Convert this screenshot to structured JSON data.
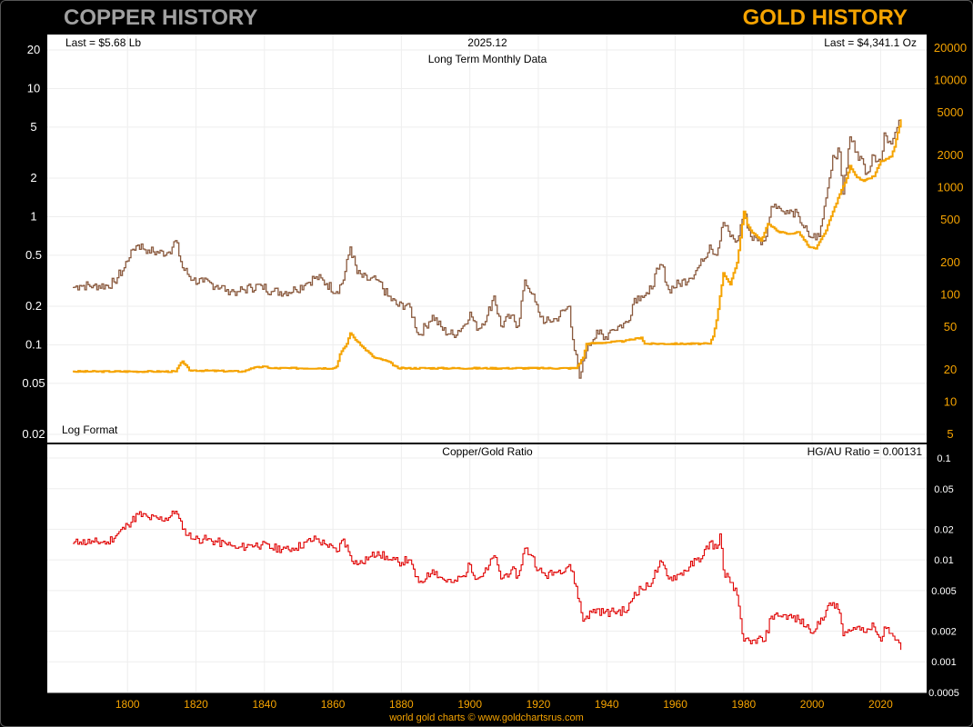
{
  "header": {
    "left_title": "COPPER HISTORY",
    "right_title": "GOLD HISTORY",
    "footer": "world gold charts © www.goldchartsrus.com"
  },
  "colors": {
    "copper": "#8a5a3e",
    "gold": "#f5a300",
    "ratio": "#e00000",
    "left_axis_text": "#ffffff",
    "right_axis_text": "#f5a300",
    "grid": "#eeeeee"
  },
  "chart_data": [
    {
      "type": "line",
      "title": "Long Term Monthly Data",
      "date_label": "2025.12",
      "last_left": "Last = $5.68 Lb",
      "last_right": "Last = $4,341.1 Oz",
      "scale_note": "Log Format",
      "x_range": [
        1784,
        2026
      ],
      "x_ticks": [
        "1800",
        "1820",
        "1840",
        "1860",
        "1880",
        "1900",
        "1920",
        "1940",
        "1960",
        "1980",
        "2000",
        "2020"
      ],
      "left_axis": {
        "scale": "log",
        "range": [
          0.02,
          20
        ],
        "ticks": [
          "20",
          "10",
          "5",
          "2",
          "1",
          "0.5",
          "0.2",
          "0.1",
          "0.05",
          "0.02"
        ]
      },
      "right_axis": {
        "scale": "log",
        "range": [
          5,
          20000
        ],
        "ticks": [
          "20000",
          "10000",
          "5000",
          "2000",
          "1000",
          "500",
          "200",
          "100",
          "50",
          "20",
          "10",
          "5"
        ]
      },
      "series": [
        {
          "name": "Copper ($/lb)",
          "axis": "left",
          "x": [
            1784,
            1786,
            1790,
            1794,
            1796,
            1799,
            1801,
            1803,
            1806,
            1809,
            1812,
            1814,
            1816,
            1819,
            1822,
            1826,
            1829,
            1832,
            1836,
            1839,
            1842,
            1846,
            1849,
            1852,
            1855,
            1858,
            1861,
            1863,
            1865,
            1867,
            1870,
            1873,
            1876,
            1879,
            1882,
            1885,
            1887,
            1889,
            1892,
            1895,
            1898,
            1900,
            1902,
            1905,
            1907,
            1909,
            1912,
            1914,
            1916,
            1918,
            1920,
            1922,
            1925,
            1929,
            1930,
            1932,
            1934,
            1937,
            1939,
            1941,
            1946,
            1948,
            1950,
            1952,
            1955,
            1956,
            1958,
            1961,
            1964,
            1966,
            1968,
            1970,
            1972,
            1974,
            1976,
            1978,
            1980,
            1982,
            1984,
            1986,
            1988,
            1990,
            1992,
            1994,
            1996,
            1999,
            2002,
            2004,
            2006,
            2008,
            2009,
            2011,
            2013,
            2016,
            2018,
            2020,
            2021,
            2023,
            2025.9
          ],
          "values": [
            0.28,
            0.29,
            0.29,
            0.29,
            0.31,
            0.4,
            0.55,
            0.6,
            0.55,
            0.52,
            0.53,
            0.65,
            0.4,
            0.32,
            0.31,
            0.29,
            0.27,
            0.26,
            0.28,
            0.29,
            0.26,
            0.26,
            0.27,
            0.3,
            0.34,
            0.3,
            0.26,
            0.32,
            0.58,
            0.36,
            0.32,
            0.32,
            0.24,
            0.2,
            0.21,
            0.12,
            0.14,
            0.17,
            0.13,
            0.12,
            0.14,
            0.18,
            0.13,
            0.17,
            0.24,
            0.14,
            0.17,
            0.14,
            0.32,
            0.25,
            0.18,
            0.15,
            0.16,
            0.2,
            0.11,
            0.055,
            0.09,
            0.13,
            0.11,
            0.13,
            0.15,
            0.23,
            0.24,
            0.25,
            0.39,
            0.42,
            0.27,
            0.3,
            0.33,
            0.38,
            0.45,
            0.6,
            0.5,
            0.9,
            0.7,
            0.65,
            1.1,
            0.7,
            0.65,
            0.65,
            1.2,
            1.2,
            1.05,
            1.1,
            1.0,
            0.7,
            0.7,
            1.4,
            3.0,
            3.2,
            1.5,
            4.2,
            3.2,
            2.2,
            3.0,
            2.7,
            4.5,
            3.7,
            5.68
          ]
        },
        {
          "name": "Gold ($/oz)",
          "axis": "right",
          "x": [
            1784,
            1814,
            1815,
            1816,
            1818,
            1834,
            1836,
            1840,
            1842,
            1860,
            1861,
            1862,
            1864,
            1865,
            1866,
            1868,
            1872,
            1876,
            1879,
            1931,
            1933,
            1934,
            1945,
            1950,
            1951,
            1970,
            1971,
            1972,
            1974,
            1976,
            1978,
            1980,
            1981,
            1982,
            1985,
            1987,
            1990,
            1993,
            1996,
            1999,
            2001,
            2004,
            2006,
            2008,
            2010,
            2011,
            2013,
            2015,
            2018,
            2020,
            2021,
            2023,
            2024,
            2025.9
          ],
          "values": [
            19.3,
            19.3,
            22,
            24,
            19.8,
            19.3,
            20.7,
            21.5,
            20.7,
            20.7,
            21.5,
            28,
            35,
            44,
            40,
            34,
            26,
            24,
            20.7,
            20.7,
            26,
            35,
            37,
            40,
            35,
            35,
            41,
            58,
            160,
            125,
            200,
            600,
            450,
            400,
            320,
            460,
            390,
            370,
            385,
            280,
            270,
            400,
            600,
            870,
            1225,
            1600,
            1250,
            1150,
            1280,
            1770,
            1800,
            1950,
            2400,
            4341.1
          ]
        }
      ]
    },
    {
      "type": "line",
      "title": "Copper/Gold Ratio",
      "last_label": "HG/AU Ratio = 0.00131",
      "x_range": [
        1784,
        2026
      ],
      "right_axis": {
        "scale": "log",
        "range": [
          0.0005,
          0.1
        ],
        "ticks": [
          "0.1",
          "0.05",
          "0.02",
          "0.01",
          "0.005",
          "0.002",
          "0.001",
          "0.0005"
        ]
      },
      "series": [
        {
          "name": "Copper/Gold Ratio",
          "x": [
            1784,
            1786,
            1790,
            1794,
            1797,
            1800,
            1803,
            1806,
            1809,
            1812,
            1814,
            1816,
            1819,
            1822,
            1826,
            1829,
            1832,
            1836,
            1839,
            1842,
            1846,
            1849,
            1852,
            1855,
            1858,
            1861,
            1863,
            1865,
            1867,
            1870,
            1873,
            1876,
            1879,
            1882,
            1885,
            1887,
            1889,
            1892,
            1895,
            1898,
            1900,
            1902,
            1905,
            1907,
            1909,
            1912,
            1914,
            1916,
            1918,
            1920,
            1922,
            1925,
            1929,
            1931,
            1933,
            1934,
            1937,
            1939,
            1942,
            1946,
            1948,
            1950,
            1952,
            1955,
            1956,
            1958,
            1961,
            1964,
            1966,
            1968,
            1970,
            1972,
            1973,
            1974,
            1976,
            1978,
            1980,
            1982,
            1984,
            1986,
            1988,
            1990,
            1992,
            1994,
            1996,
            1999,
            2001,
            2004,
            2006,
            2008,
            2009,
            2011,
            2013,
            2016,
            2018,
            2020,
            2021,
            2023,
            2025.9
          ],
          "values": [
            0.0145,
            0.015,
            0.015,
            0.015,
            0.018,
            0.022,
            0.028,
            0.026,
            0.025,
            0.026,
            0.03,
            0.02,
            0.016,
            0.016,
            0.015,
            0.014,
            0.013,
            0.014,
            0.014,
            0.013,
            0.013,
            0.013,
            0.015,
            0.016,
            0.014,
            0.012,
            0.016,
            0.011,
            0.009,
            0.01,
            0.012,
            0.01,
            0.0095,
            0.01,
            0.006,
            0.0065,
            0.008,
            0.0065,
            0.006,
            0.007,
            0.009,
            0.0065,
            0.008,
            0.011,
            0.0065,
            0.008,
            0.007,
            0.013,
            0.011,
            0.008,
            0.007,
            0.0075,
            0.009,
            0.0055,
            0.0025,
            0.0028,
            0.0033,
            0.003,
            0.0031,
            0.0032,
            0.0048,
            0.0052,
            0.0055,
            0.0085,
            0.0095,
            0.0065,
            0.0072,
            0.0085,
            0.01,
            0.011,
            0.015,
            0.013,
            0.018,
            0.008,
            0.006,
            0.0045,
            0.0016,
            0.0015,
            0.0017,
            0.0016,
            0.0028,
            0.0028,
            0.0029,
            0.0027,
            0.0026,
            0.0021,
            0.0021,
            0.0032,
            0.0038,
            0.003,
            0.0018,
            0.002,
            0.0022,
            0.0021,
            0.0022,
            0.0016,
            0.0022,
            0.0019,
            0.00131
          ]
        }
      ]
    }
  ]
}
